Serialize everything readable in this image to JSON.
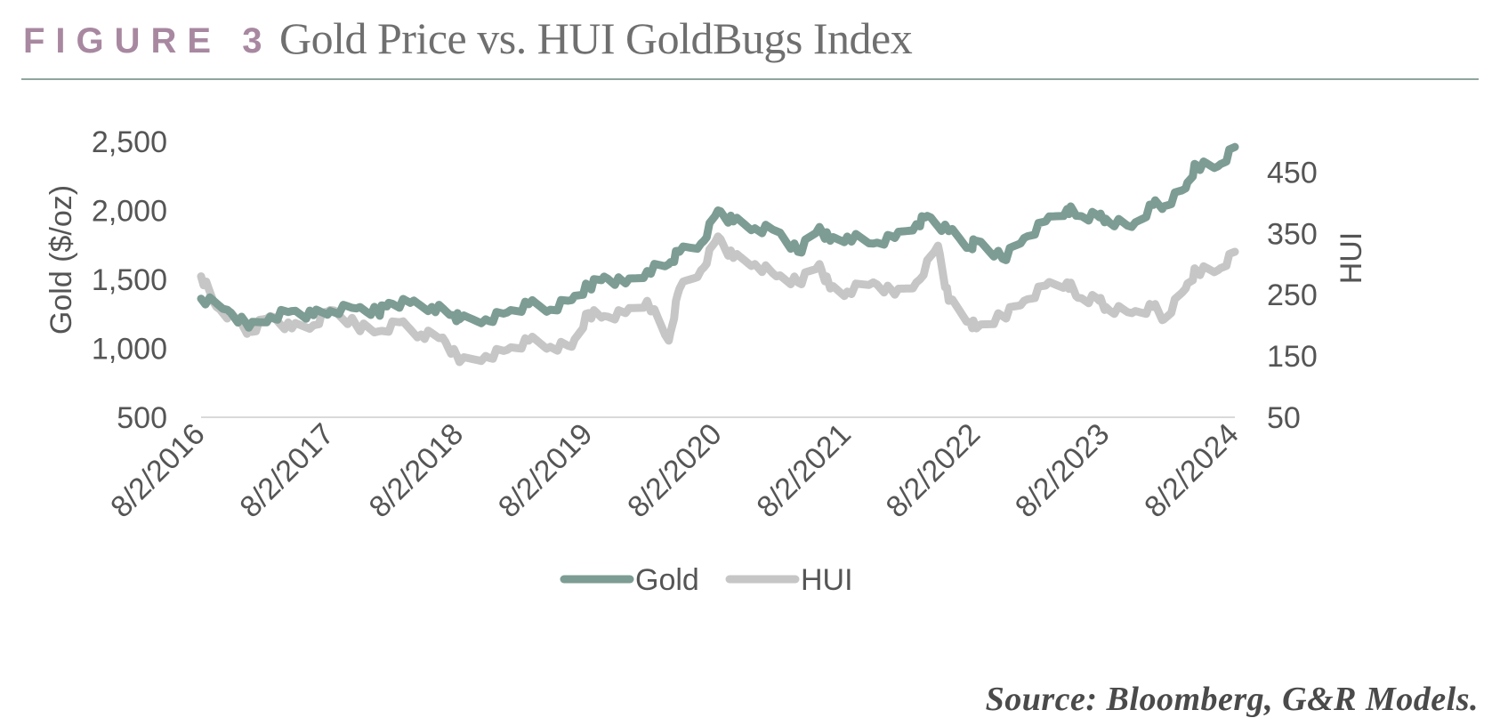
{
  "header": {
    "figure_label": "FIGURE 3",
    "title": "Gold Price vs. HUI GoldBugs Index"
  },
  "source": "Source: Bloomberg, G&R Models.",
  "colors": {
    "gold": "#7d9c94",
    "hui": "#c6c6c6",
    "baseline": "#d9d9d9",
    "label_purple": "#a888a0"
  },
  "chart_data": {
    "type": "line",
    "title": "",
    "xlabel": "",
    "ylabel": "Gold ($/oz)",
    "y2label": "HUI",
    "x_start": "8/2/2016",
    "x_end": "8/2/2024",
    "x_ticks": [
      "8/2/2016",
      "8/2/2017",
      "8/2/2018",
      "8/2/2019",
      "8/2/2020",
      "8/2/2021",
      "8/2/2022",
      "8/2/2023",
      "8/2/2024"
    ],
    "y_ticks": [
      "500",
      "1,000",
      "1,500",
      "2,000",
      "2,500"
    ],
    "y2_ticks": [
      "50",
      "150",
      "250",
      "350",
      "450"
    ],
    "ylim": [
      500,
      2500
    ],
    "y2lim": [
      50,
      500
    ],
    "grid": false,
    "legend": "bottom-center",
    "series": [
      {
        "name": "Gold",
        "axis": "left",
        "x": [
          "8/2/2016",
          "10/2016",
          "12/2016",
          "2/2017",
          "4/2017",
          "6/2017",
          "8/2/2017",
          "10/2017",
          "12/2017",
          "1/2018",
          "3/2018",
          "5/2018",
          "7/2018",
          "8/2/2018",
          "10/2018",
          "12/2018",
          "2/2019",
          "4/2019",
          "6/2019",
          "8/2/2019",
          "9/2019",
          "11/2019",
          "1/2020",
          "3/2020",
          "4/2020",
          "6/2020",
          "8/2/2020",
          "9/2020",
          "11/2020",
          "1/2021",
          "3/2021",
          "5/2021",
          "6/2021",
          "8/2/2021",
          "10/2021",
          "12/2021",
          "2/2022",
          "3/2022",
          "5/2022",
          "7/2022",
          "8/2/2022",
          "10/2022",
          "12/2022",
          "2/2023",
          "4/2023",
          "5/2023",
          "7/2023",
          "8/2/2023",
          "10/2023",
          "12/2023",
          "1/2024",
          "3/2024",
          "4/2024",
          "6/2024",
          "8/2/2024"
        ],
        "values": [
          1360,
          1280,
          1150,
          1230,
          1270,
          1240,
          1270,
          1290,
          1260,
          1330,
          1330,
          1300,
          1240,
          1210,
          1210,
          1260,
          1320,
          1280,
          1350,
          1450,
          1520,
          1470,
          1560,
          1610,
          1700,
          1760,
          2000,
          1920,
          1870,
          1850,
          1700,
          1880,
          1780,
          1810,
          1760,
          1800,
          1900,
          1960,
          1850,
          1730,
          1780,
          1650,
          1800,
          1920,
          2010,
          1960,
          1950,
          1940,
          1880,
          2040,
          2030,
          2160,
          2330,
          2320,
          2460
        ]
      },
      {
        "name": "HUI",
        "axis": "right",
        "x": [
          "8/2/2016",
          "9/2016",
          "11/2016",
          "12/2016",
          "2/2017",
          "4/2017",
          "6/2017",
          "8/2/2017",
          "10/2017",
          "12/2017",
          "2/2018",
          "4/2018",
          "6/2018",
          "8/2/2018",
          "10/2018",
          "12/2018",
          "2/2019",
          "4/2019",
          "6/2019",
          "8/2/2019",
          "9/2019",
          "11/2019",
          "1/2020",
          "3/2020",
          "4/2020",
          "6/2020",
          "8/2/2020",
          "9/2020",
          "11/2020",
          "1/2021",
          "3/2021",
          "5/2021",
          "6/2021",
          "8/2/2021",
          "10/2021",
          "12/2021",
          "2/2022",
          "4/2022",
          "5/2022",
          "7/2022",
          "8/2/2022",
          "10/2022",
          "12/2022",
          "2/2023",
          "4/2023",
          "5/2023",
          "7/2023",
          "8/2/2023",
          "10/2023",
          "12/2023",
          "1/2024",
          "3/2024",
          "4/2024",
          "6/2024",
          "8/2/2024"
        ],
        "values": [
          280,
          230,
          205,
          190,
          215,
          195,
          200,
          225,
          200,
          190,
          205,
          185,
          180,
          140,
          150,
          160,
          175,
          165,
          165,
          220,
          215,
          220,
          240,
          175,
          260,
          290,
          345,
          310,
          300,
          280,
          270,
          300,
          260,
          255,
          270,
          250,
          270,
          330,
          240,
          205,
          195,
          215,
          240,
          265,
          270,
          245,
          240,
          230,
          220,
          230,
          210,
          260,
          290,
          290,
          320
        ]
      }
    ]
  }
}
